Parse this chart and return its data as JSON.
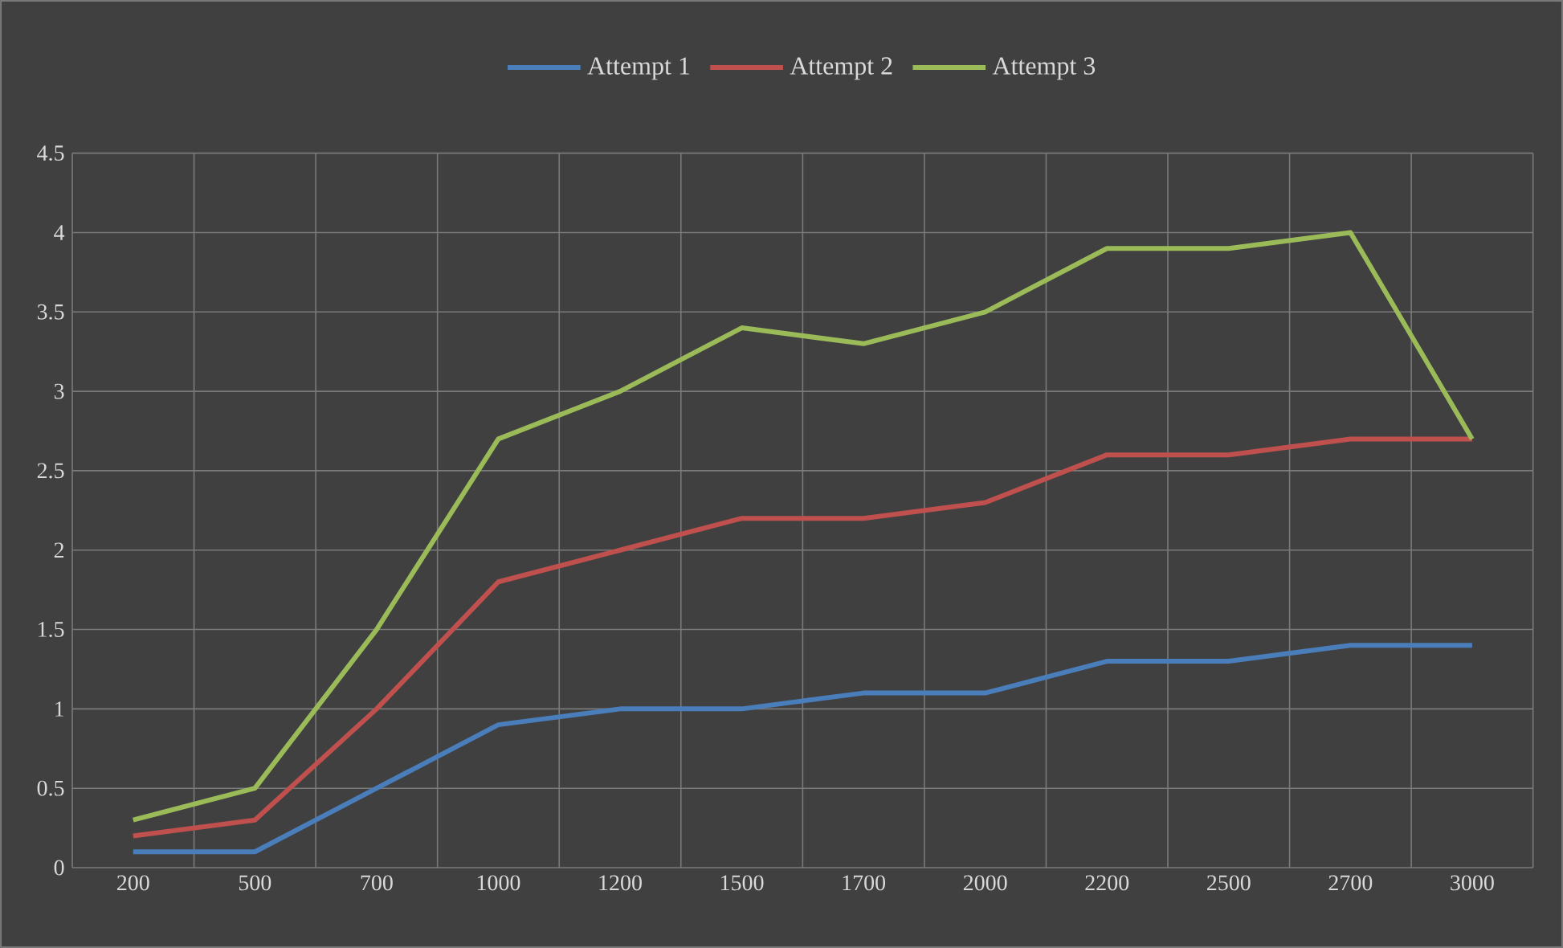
{
  "chart_data": {
    "type": "line",
    "categories": [
      "200",
      "500",
      "700",
      "1000",
      "1200",
      "1500",
      "1700",
      "2000",
      "2200",
      "2500",
      "2700",
      "3000"
    ],
    "series": [
      {
        "name": "Attempt 1",
        "color": "#4a7ebb",
        "values": [
          0.1,
          0.1,
          0.5,
          0.9,
          1.0,
          1.0,
          1.1,
          1.1,
          1.3,
          1.3,
          1.4,
          1.4
        ]
      },
      {
        "name": "Attempt 2",
        "color": "#c0504d",
        "values": [
          0.2,
          0.3,
          1.0,
          1.8,
          2.0,
          2.2,
          2.2,
          2.3,
          2.6,
          2.6,
          2.7,
          2.7
        ]
      },
      {
        "name": "Attempt 3",
        "color": "#9bbb59",
        "values": [
          0.3,
          0.5,
          1.5,
          2.7,
          3.0,
          3.4,
          3.3,
          3.5,
          3.9,
          3.9,
          4.0,
          2.7
        ]
      }
    ],
    "ylim": [
      0,
      4.5
    ],
    "yticks": [
      0,
      0.5,
      1,
      1.5,
      2,
      2.5,
      3,
      3.5,
      4,
      4.5
    ],
    "grid": true,
    "legend": "top"
  }
}
